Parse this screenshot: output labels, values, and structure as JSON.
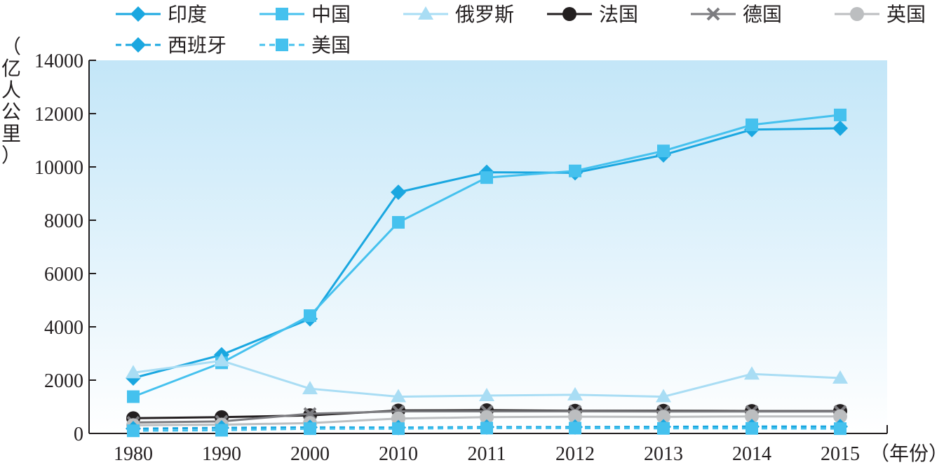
{
  "chart_data": {
    "type": "line",
    "title": "",
    "xlabel": "（年份）",
    "ylabel": "（亿人公里）",
    "categories": [
      "1980",
      "1990",
      "2000",
      "2010",
      "2011",
      "2012",
      "2013",
      "2014",
      "2015"
    ],
    "ylim": [
      0,
      14000
    ],
    "yticks": [
      "0",
      "2000",
      "4000",
      "6000",
      "8000",
      "10000",
      "12000",
      "14000"
    ],
    "grid": false,
    "legend_position": "top-left",
    "series": [
      {
        "name": "印度",
        "color": "#1aa7e0",
        "marker": "diamond",
        "dashed": false,
        "values": [
          2080,
          2950,
          4300,
          9050,
          9800,
          9780,
          10450,
          11400,
          11450
        ]
      },
      {
        "name": "中国",
        "color": "#45c1ee",
        "marker": "square",
        "dashed": false,
        "values": [
          1380,
          2650,
          4420,
          7920,
          9600,
          9850,
          10600,
          11580,
          11950
        ]
      },
      {
        "name": "俄罗斯",
        "color": "#a9ddf4",
        "marker": "triangle",
        "dashed": false,
        "values": [
          2280,
          2730,
          1680,
          1380,
          1420,
          1450,
          1380,
          2230,
          2080
        ]
      },
      {
        "name": "法国",
        "color": "#231f20",
        "marker": "circle",
        "dashed": false,
        "values": [
          570,
          610,
          680,
          860,
          870,
          850,
          850,
          840,
          840
        ]
      },
      {
        "name": "德国",
        "color": "#7c7c80",
        "marker": "cross",
        "dashed": false,
        "values": [
          410,
          450,
          740,
          830,
          830,
          830,
          820,
          820,
          820
        ]
      },
      {
        "name": "英国",
        "color": "#bcbec0",
        "marker": "circle",
        "dashed": false,
        "values": [
          310,
          330,
          390,
          560,
          610,
          630,
          620,
          640,
          640
        ]
      },
      {
        "name": "西班牙",
        "color": "#1aa7e0",
        "marker": "diamond",
        "dashed": true,
        "values": [
          180,
          210,
          230,
          220,
          240,
          240,
          250,
          260,
          260
        ]
      },
      {
        "name": "美国",
        "color": "#45c1ee",
        "marker": "square",
        "dashed": true,
        "values": [
          100,
          120,
          180,
          180,
          200,
          200,
          190,
          190,
          180
        ]
      }
    ]
  }
}
